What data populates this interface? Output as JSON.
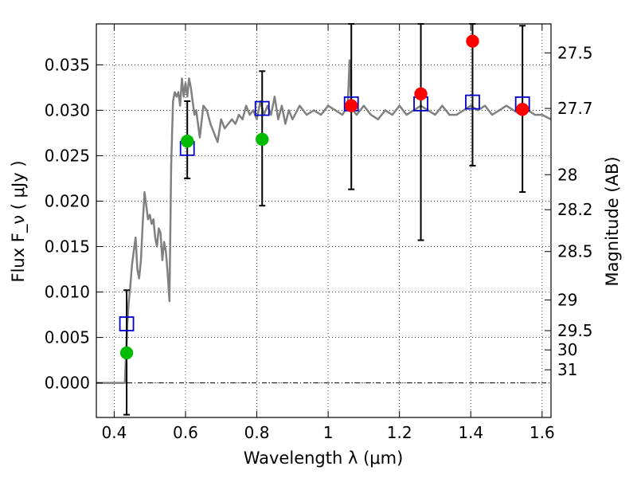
{
  "chart_data": {
    "type": "scatter",
    "xlabel": "Wavelength  λ (μm)",
    "ylabel": "Flux  F_ν  ( μJy )",
    "y2label": "Magnitude (AB)",
    "xlim": [
      0.35,
      1.625
    ],
    "ylim": [
      -0.0038,
      0.0395
    ],
    "xticks": [
      0.4,
      0.6,
      0.8,
      1.0,
      1.2,
      1.4,
      1.6
    ],
    "xtick_labels": [
      "0.4",
      "0.6",
      "0.8",
      "1",
      "1.2",
      "1.4",
      "1.6"
    ],
    "yticks": [
      0.0,
      0.005,
      0.01,
      0.015,
      0.02,
      0.025,
      0.03,
      0.035
    ],
    "ytick_labels": [
      "0.000",
      "0.005",
      "0.010",
      "0.015",
      "0.020",
      "0.025",
      "0.030",
      "0.035"
    ],
    "y2ticks": [
      27.5,
      27.7,
      28,
      28.2,
      28.5,
      29,
      29.5,
      30,
      31
    ],
    "y2tick_labels": [
      "27.5",
      "27.7",
      "28",
      "28.2",
      "28.5",
      "29",
      "29.5",
      "30",
      "31"
    ],
    "grid": true,
    "model_spectrum": {
      "color": "#808080",
      "x": [
        0.35,
        0.43,
        0.435,
        0.44,
        0.445,
        0.45,
        0.455,
        0.46,
        0.465,
        0.47,
        0.475,
        0.48,
        0.485,
        0.49,
        0.495,
        0.5,
        0.505,
        0.51,
        0.515,
        0.52,
        0.525,
        0.53,
        0.535,
        0.54,
        0.545,
        0.55,
        0.555,
        0.56,
        0.565,
        0.57,
        0.575,
        0.58,
        0.585,
        0.59,
        0.595,
        0.6,
        0.605,
        0.61,
        0.615,
        0.62,
        0.625,
        0.63,
        0.64,
        0.65,
        0.66,
        0.67,
        0.68,
        0.69,
        0.7,
        0.71,
        0.72,
        0.73,
        0.74,
        0.75,
        0.76,
        0.77,
        0.78,
        0.79,
        0.8,
        0.81,
        0.82,
        0.83,
        0.84,
        0.85,
        0.86,
        0.87,
        0.88,
        0.89,
        0.9,
        0.92,
        0.94,
        0.96,
        0.98,
        1.0,
        1.02,
        1.04,
        1.055,
        1.06,
        1.065,
        1.07,
        1.08,
        1.1,
        1.12,
        1.14,
        1.16,
        1.18,
        1.2,
        1.22,
        1.24,
        1.26,
        1.28,
        1.3,
        1.32,
        1.34,
        1.36,
        1.38,
        1.4,
        1.42,
        1.44,
        1.46,
        1.48,
        1.5,
        1.52,
        1.54,
        1.56,
        1.58,
        1.6,
        1.625
      ],
      "y": [
        0,
        0,
        0.005,
        0.0085,
        0.0105,
        0.013,
        0.0145,
        0.016,
        0.0125,
        0.0115,
        0.0135,
        0.0175,
        0.021,
        0.0195,
        0.018,
        0.0185,
        0.0175,
        0.018,
        0.016,
        0.015,
        0.017,
        0.0165,
        0.0135,
        0.0155,
        0.0145,
        0.012,
        0.009,
        0.024,
        0.031,
        0.032,
        0.0315,
        0.032,
        0.0305,
        0.0335,
        0.0315,
        0.033,
        0.0315,
        0.0335,
        0.0325,
        0.031,
        0.0295,
        0.03,
        0.027,
        0.0305,
        0.03,
        0.0285,
        0.0275,
        0.0265,
        0.029,
        0.028,
        0.0285,
        0.029,
        0.0285,
        0.0295,
        0.029,
        0.0305,
        0.0295,
        0.03,
        0.029,
        0.031,
        0.0295,
        0.0305,
        0.0295,
        0.0315,
        0.029,
        0.0305,
        0.0285,
        0.03,
        0.029,
        0.0305,
        0.0295,
        0.03,
        0.0295,
        0.0305,
        0.03,
        0.0295,
        0.0305,
        0.0355,
        0.0305,
        0.03,
        0.0295,
        0.0305,
        0.0295,
        0.029,
        0.03,
        0.0295,
        0.0305,
        0.0295,
        0.03,
        0.0305,
        0.03,
        0.0295,
        0.0305,
        0.0295,
        0.0295,
        0.03,
        0.0305,
        0.03,
        0.0305,
        0.0295,
        0.03,
        0.0305,
        0.03,
        0.0295,
        0.03,
        0.0295,
        0.0295,
        0.029
      ]
    },
    "series": [
      {
        "marker": "open-square",
        "color": "#0000cc",
        "x": [
          0.435,
          0.605,
          0.815,
          1.065,
          1.26,
          1.405,
          1.545
        ],
        "y": [
          0.0065,
          0.0258,
          0.0302,
          0.0307,
          0.0307,
          0.0309,
          0.0307
        ]
      },
      {
        "marker": "filled-circle",
        "color": "#00bb00",
        "x": [
          0.435,
          0.605,
          0.815
        ],
        "y": [
          0.0033,
          0.0266,
          0.0268
        ],
        "yerr_low": [
          -0.0035,
          0.0225,
          0.0195
        ],
        "yerr_high": [
          0.0102,
          0.031,
          0.0343
        ]
      },
      {
        "marker": "filled-circle",
        "color": "#ff0000",
        "x": [
          1.065,
          1.26,
          1.405,
          1.545
        ],
        "y": [
          0.0305,
          0.0318,
          0.0376,
          0.0301
        ],
        "yerr_low": [
          0.0213,
          0.0157,
          0.0239,
          0.021
        ],
        "yerr_high": [
          0.0395,
          0.0395,
          0.0395,
          0.0393
        ]
      }
    ]
  }
}
